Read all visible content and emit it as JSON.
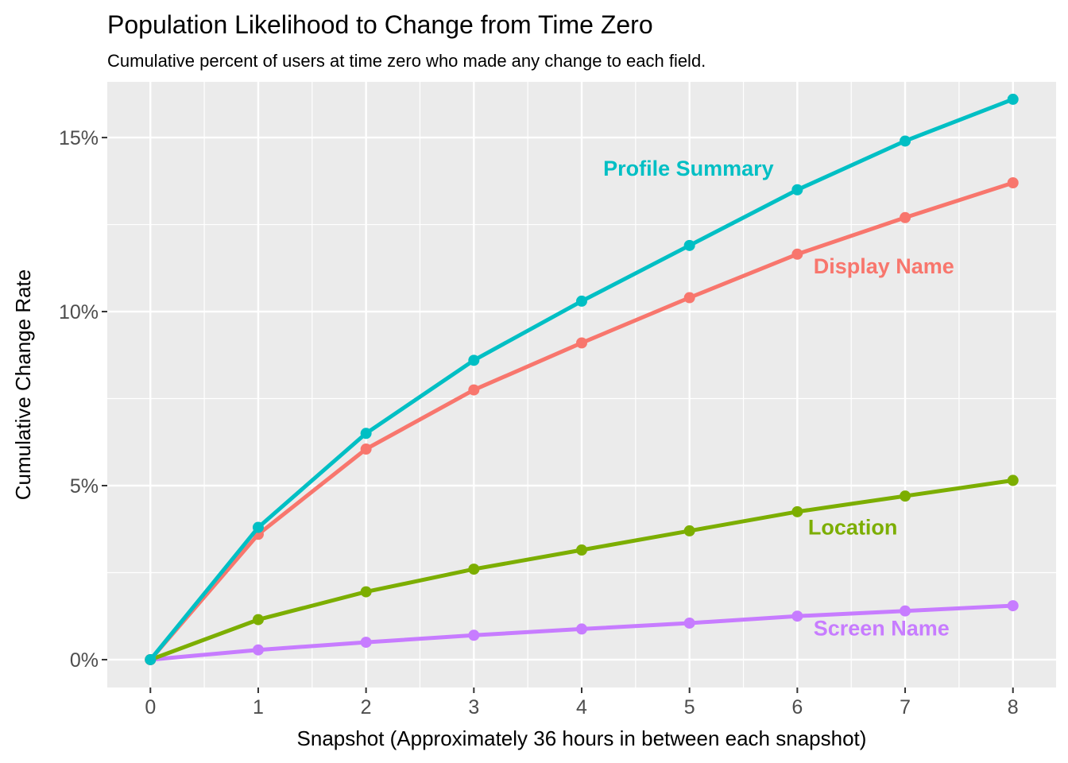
{
  "chart_data": {
    "type": "line",
    "title": "Population Likelihood to Change from Time Zero",
    "subtitle": "Cumulative percent of users at time zero who made any change to each field.",
    "xlabel": "Snapshot (Approximately 36 hours in between each snapshot)",
    "ylabel": "Cumulative Change Rate",
    "x": [
      0,
      1,
      2,
      3,
      4,
      5,
      6,
      7,
      8
    ],
    "x_ticks": [
      "0",
      "1",
      "2",
      "3",
      "4",
      "5",
      "6",
      "7",
      "8"
    ],
    "y_ticks": [
      {
        "value": 0,
        "label": "0%"
      },
      {
        "value": 5,
        "label": "5%"
      },
      {
        "value": 10,
        "label": "10%"
      },
      {
        "value": 15,
        "label": "15%"
      }
    ],
    "xlim": [
      -0.4,
      8.4
    ],
    "ylim": [
      -0.8,
      16.6
    ],
    "grid": true,
    "legend": "direct labels",
    "series": [
      {
        "name": "Profile Summary",
        "color": "#00bfc4",
        "values": [
          0,
          3.8,
          6.5,
          8.6,
          10.3,
          11.9,
          13.5,
          14.9,
          16.1
        ],
        "label_x": 4.2,
        "label_y": 13.9
      },
      {
        "name": "Display Name",
        "color": "#f8766d",
        "values": [
          0,
          3.6,
          6.05,
          7.75,
          9.1,
          10.4,
          11.65,
          12.7,
          13.7
        ],
        "label_x": 6.15,
        "label_y": 11.1
      },
      {
        "name": "Location",
        "color": "#7cae00",
        "values": [
          0,
          1.15,
          1.95,
          2.6,
          3.15,
          3.7,
          4.25,
          4.7,
          5.15
        ],
        "label_x": 6.1,
        "label_y": 3.6
      },
      {
        "name": "Screen Name",
        "color": "#c77cff",
        "values": [
          0,
          0.28,
          0.5,
          0.7,
          0.88,
          1.05,
          1.25,
          1.4,
          1.55
        ],
        "label_x": 6.15,
        "label_y": 0.7
      }
    ]
  }
}
